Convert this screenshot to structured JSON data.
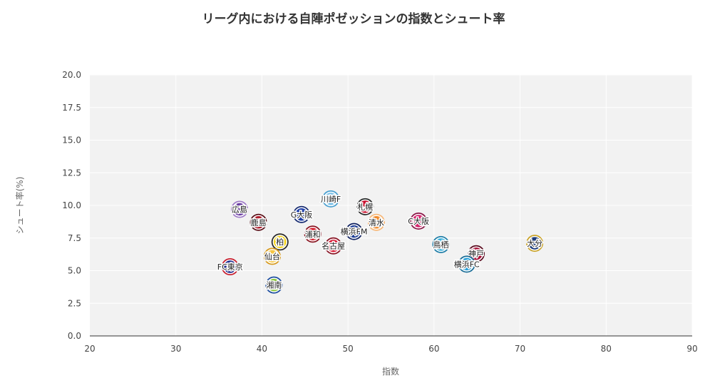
{
  "chart_data": {
    "type": "scatter",
    "title": "リーグ内における自陣ポゼッションの指数とシュート率",
    "xlabel": "指数",
    "ylabel": "シュート率(%)",
    "xlim": [
      20,
      90
    ],
    "ylim": [
      0,
      20
    ],
    "xticks": [
      "20",
      "30",
      "40",
      "50",
      "60",
      "70",
      "80",
      "90"
    ],
    "yticks": [
      "0.0",
      "2.5",
      "5.0",
      "7.5",
      "10.0",
      "12.5",
      "15.0",
      "17.5",
      "20.0"
    ],
    "grid": true,
    "plot_background": "#f2f2f2",
    "points": [
      {
        "label": "広島",
        "x": 37.4,
        "y": 9.7,
        "color": "#6a3fa0",
        "ring": "#a07cc8"
      },
      {
        "label": "鹿島",
        "x": 39.6,
        "y": 8.7,
        "color": "#b01e2e",
        "ring": "#5a1018"
      },
      {
        "label": "G大阪",
        "x": 44.6,
        "y": 9.3,
        "color": "#1f3fa8",
        "ring": "#152a70"
      },
      {
        "label": "川崎F",
        "x": 48.0,
        "y": 10.5,
        "color": "#7fc2e8",
        "ring": "#4aa0d0"
      },
      {
        "label": "札幌",
        "x": 52.0,
        "y": 9.9,
        "color": "#c8102e",
        "ring": "#2a2a2a"
      },
      {
        "label": "清水",
        "x": 53.3,
        "y": 8.7,
        "color": "#f08a2c",
        "ring": "#f8b878"
      },
      {
        "label": "C大阪",
        "x": 58.2,
        "y": 8.8,
        "color": "#d6246e",
        "ring": "#8a1446"
      },
      {
        "label": "浦和",
        "x": 45.9,
        "y": 7.8,
        "color": "#d61e2e",
        "ring": "#8a1420"
      },
      {
        "label": "横浜FM",
        "x": 50.7,
        "y": 8.0,
        "color": "#1c3c94",
        "ring": "#0e2060"
      },
      {
        "label": "柏",
        "x": 42.1,
        "y": 7.2,
        "color": "#f5d31a",
        "ring": "#2a2a2a"
      },
      {
        "label": "名古屋",
        "x": 48.3,
        "y": 6.9,
        "color": "#d8213a",
        "ring": "#8a1424"
      },
      {
        "label": "鳥栖",
        "x": 60.8,
        "y": 7.0,
        "color": "#38b0dc",
        "ring": "#1f7ea8"
      },
      {
        "label": "大分",
        "x": 71.7,
        "y": 7.1,
        "color": "#1c3a7a",
        "ring": "#c9a227"
      },
      {
        "label": "仙台",
        "x": 41.2,
        "y": 6.1,
        "color": "#f5c542",
        "ring": "#d79a1e"
      },
      {
        "label": "神戸",
        "x": 64.9,
        "y": 6.3,
        "color": "#a8143a",
        "ring": "#5a0a1e"
      },
      {
        "label": "横浜FC",
        "x": 63.8,
        "y": 5.5,
        "color": "#2aa0d8",
        "ring": "#1a6e98"
      },
      {
        "label": "FC東京",
        "x": 36.3,
        "y": 5.3,
        "color": "#1c2a8c",
        "ring": "#c81e2e"
      },
      {
        "label": "湘南",
        "x": 41.4,
        "y": 3.9,
        "color": "#8cc63f",
        "ring": "#1e4fa0"
      }
    ]
  }
}
